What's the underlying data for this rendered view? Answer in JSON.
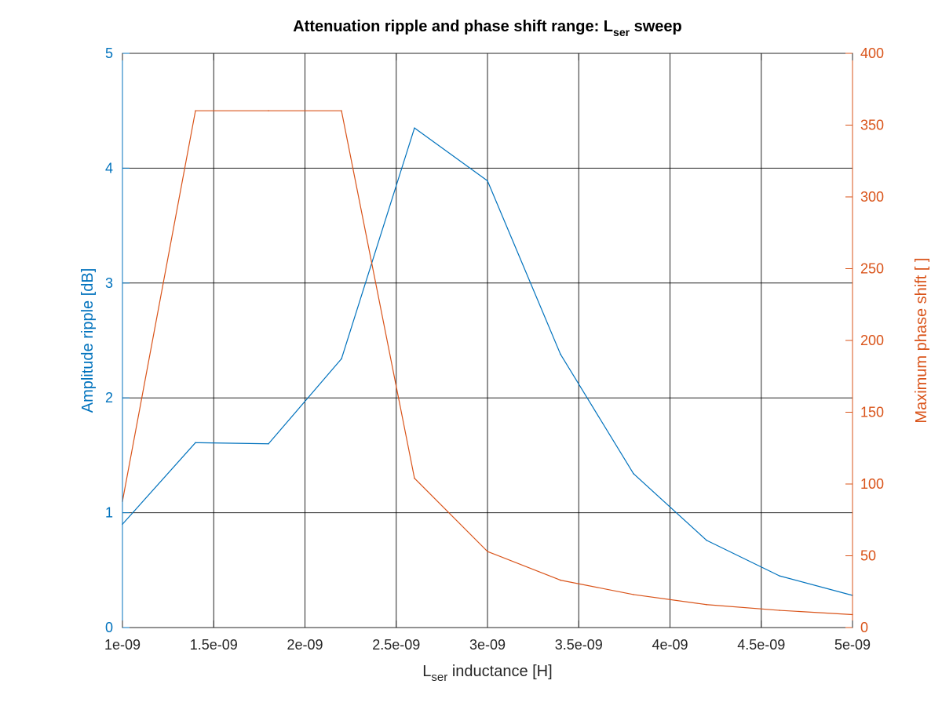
{
  "chart_data": {
    "type": "line",
    "title": {
      "main": "Attenuation ripple and phase shift range: L",
      "sub": "ser",
      "tail": " sweep"
    },
    "x_axis": {
      "label": {
        "main": "L",
        "sub": "ser",
        "tail": " inductance [H]"
      },
      "lim": [
        1e-09,
        5e-09
      ],
      "ticks": [
        1e-09,
        1.5e-09,
        2e-09,
        2.5e-09,
        3e-09,
        3.5e-09,
        4e-09,
        4.5e-09,
        5e-09
      ],
      "tick_labels": [
        "1e-09",
        "1.5e-09",
        "2e-09",
        "2.5e-09",
        "3e-09",
        "3.5e-09",
        "4e-09",
        "4.5e-09",
        "5e-09"
      ]
    },
    "y_left": {
      "label": "Amplitude ripple [dB]",
      "lim": [
        0,
        5
      ],
      "ticks": [
        0,
        1,
        2,
        3,
        4,
        5
      ],
      "color": "#0072BD"
    },
    "y_right": {
      "label": "Maximum phase shift [ ]",
      "lim": [
        0,
        400
      ],
      "ticks": [
        0,
        50,
        100,
        150,
        200,
        250,
        300,
        350,
        400
      ],
      "color": "#D95319"
    },
    "grid": true,
    "x": [
      1e-09,
      1.4e-09,
      1.8e-09,
      2.2e-09,
      2.6e-09,
      3e-09,
      3.4e-09,
      3.8e-09,
      4.2e-09,
      4.6e-09,
      5e-09
    ],
    "series": [
      {
        "axis": "left",
        "color": "#0072BD",
        "values": [
          0.9,
          1.61,
          1.6,
          2.34,
          4.35,
          3.89,
          2.38,
          1.34,
          0.76,
          0.45,
          0.28
        ]
      },
      {
        "axis": "right",
        "color": "#D95319",
        "values": [
          88,
          360,
          360,
          360,
          104,
          53,
          33,
          23,
          16,
          12,
          9
        ]
      }
    ]
  }
}
